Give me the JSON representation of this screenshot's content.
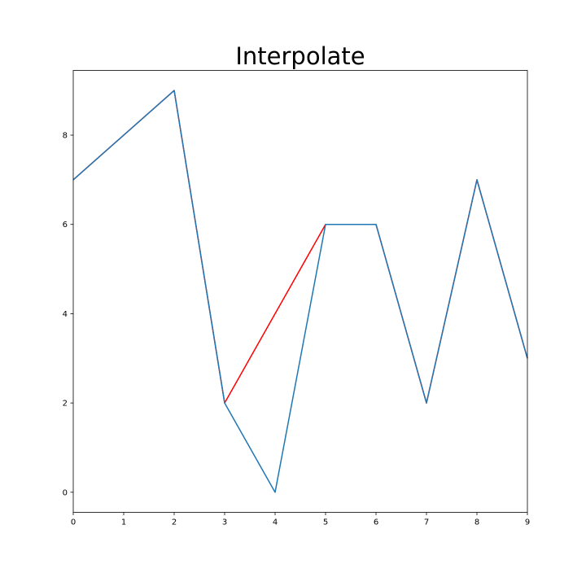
{
  "chart_data": {
    "type": "line",
    "title": "Interpolate",
    "xlabel": "",
    "ylabel": "",
    "xlim": [
      0,
      9
    ],
    "ylim": [
      -0.45,
      9.45
    ],
    "x_ticks": [
      0,
      1,
      2,
      3,
      4,
      5,
      6,
      7,
      8,
      9
    ],
    "y_ticks": [
      0,
      2,
      4,
      6,
      8
    ],
    "grid": false,
    "legend": "none",
    "x": [
      0,
      1,
      2,
      3,
      4,
      5,
      6,
      7,
      8,
      9
    ],
    "series": [
      {
        "color": "#ff0000",
        "values": [
          7,
          8,
          9,
          2,
          4,
          6,
          6,
          2,
          7,
          3
        ]
      },
      {
        "color": "#1f77b4",
        "values": [
          7,
          8,
          9,
          2,
          0,
          6,
          6,
          2,
          7,
          3
        ]
      }
    ]
  }
}
